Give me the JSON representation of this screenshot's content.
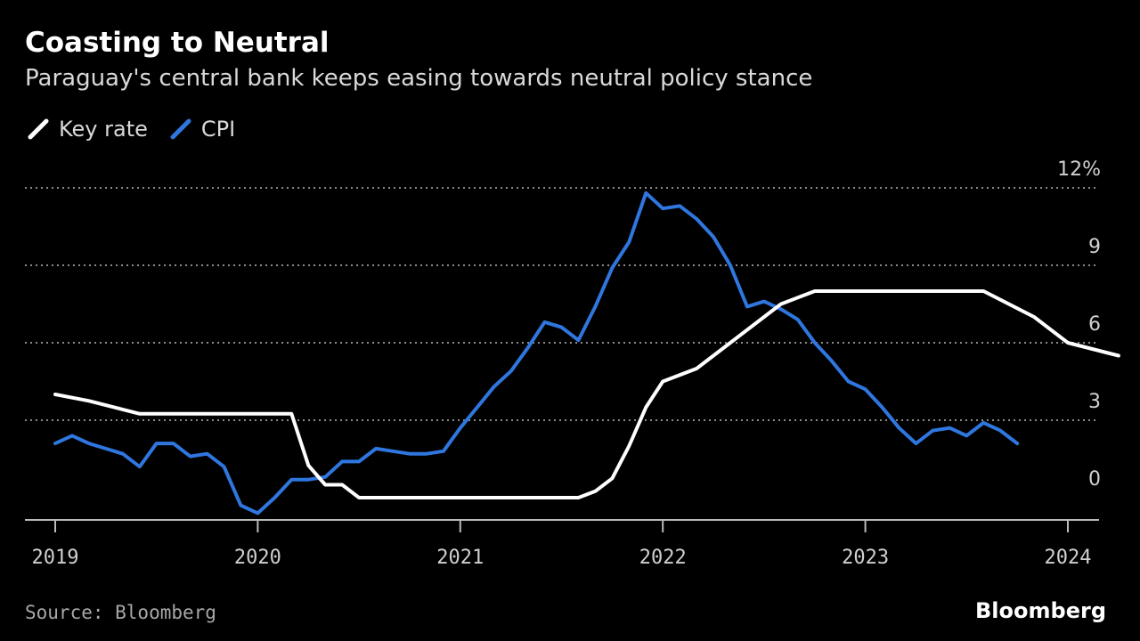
{
  "title": "Coasting to Neutral",
  "subtitle": "Paraguay's central bank keeps easing towards neutral policy stance",
  "source": "Source: Bloomberg",
  "brand": "Bloomberg",
  "colors": {
    "key_rate": "#ffffff",
    "cpi": "#2f76df",
    "grid": "#8a8a8a",
    "background": "#000000"
  },
  "chart_data": {
    "type": "line",
    "title": "Coasting to Neutral",
    "subtitle": "Paraguay's central bank keeps easing towards neutral policy stance",
    "ylim": [
      0,
      12
    ],
    "y_ticks": [
      0,
      3,
      6,
      9,
      12
    ],
    "y_tick_labels": [
      "0",
      "3",
      "6",
      "9",
      "12%"
    ],
    "x_ticks": [
      "2019",
      "2020",
      "2021",
      "2022",
      "2023",
      "2024"
    ],
    "xlim": [
      "2019-01",
      "2024-11"
    ],
    "grid": "horizontal dotted",
    "legend_position": "top-left",
    "series": [
      {
        "name": "Key rate",
        "color": "#ffffff",
        "points": [
          [
            "2019-01",
            4.0
          ],
          [
            "2019-03",
            3.75
          ],
          [
            "2019-06",
            3.25
          ],
          [
            "2019-09",
            3.25
          ],
          [
            "2019-12",
            3.25
          ],
          [
            "2020-03",
            3.25
          ],
          [
            "2020-04",
            1.25
          ],
          [
            "2020-05",
            0.5
          ],
          [
            "2020-06",
            0.5
          ],
          [
            "2020-07",
            0
          ],
          [
            "2020-12",
            0
          ],
          [
            "2021-06",
            0
          ],
          [
            "2021-08",
            0
          ],
          [
            "2021-09",
            0.25
          ],
          [
            "2021-10",
            0.75
          ],
          [
            "2021-11",
            2.0
          ],
          [
            "2021-12",
            3.5
          ],
          [
            "2022-01",
            4.5
          ],
          [
            "2022-03",
            5.0
          ],
          [
            "2022-05",
            6.0
          ],
          [
            "2022-07",
            7.0
          ],
          [
            "2022-08",
            7.5
          ],
          [
            "2022-10",
            8.0
          ],
          [
            "2022-12",
            8.0
          ],
          [
            "2023-06",
            8.0
          ],
          [
            "2023-08",
            8.0
          ],
          [
            "2023-11",
            7.0
          ],
          [
            "2024-01",
            6.0
          ],
          [
            "2024-04",
            5.5
          ]
        ]
      },
      {
        "name": "CPI",
        "color": "#2f76df",
        "points": [
          [
            "2019-01",
            2.1
          ],
          [
            "2019-02",
            2.4
          ],
          [
            "2019-03",
            2.1
          ],
          [
            "2019-04",
            1.9
          ],
          [
            "2019-05",
            1.7
          ],
          [
            "2019-06",
            1.2
          ],
          [
            "2019-07",
            2.1
          ],
          [
            "2019-08",
            2.1
          ],
          [
            "2019-09",
            1.6
          ],
          [
            "2019-10",
            1.7
          ],
          [
            "2019-11",
            1.2
          ],
          [
            "2019-12",
            -0.3
          ],
          [
            "2020-01",
            -0.6
          ],
          [
            "2020-02",
            0.0
          ],
          [
            "2020-03",
            0.7
          ],
          [
            "2020-04",
            0.7
          ],
          [
            "2020-05",
            0.8
          ],
          [
            "2020-06",
            1.4
          ],
          [
            "2020-07",
            1.4
          ],
          [
            "2020-08",
            1.9
          ],
          [
            "2020-09",
            1.8
          ],
          [
            "2020-10",
            1.7
          ],
          [
            "2020-11",
            1.7
          ],
          [
            "2020-12",
            1.8
          ],
          [
            "2021-01",
            2.7
          ],
          [
            "2021-02",
            3.5
          ],
          [
            "2021-03",
            4.3
          ],
          [
            "2021-04",
            4.9
          ],
          [
            "2021-05",
            5.8
          ],
          [
            "2021-06",
            6.8
          ],
          [
            "2021-07",
            6.6
          ],
          [
            "2021-08",
            6.1
          ],
          [
            "2021-09",
            7.4
          ],
          [
            "2021-10",
            8.9
          ],
          [
            "2021-11",
            9.9
          ],
          [
            "2021-12",
            11.8
          ],
          [
            "2022-01",
            11.2
          ],
          [
            "2022-02",
            11.3
          ],
          [
            "2022-03",
            10.8
          ],
          [
            "2022-04",
            10.1
          ],
          [
            "2022-05",
            9.0
          ],
          [
            "2022-06",
            7.4
          ],
          [
            "2022-07",
            7.6
          ],
          [
            "2022-08",
            7.3
          ],
          [
            "2022-09",
            6.9
          ],
          [
            "2022-10",
            6.0
          ],
          [
            "2022-11",
            5.3
          ],
          [
            "2022-12",
            4.5
          ],
          [
            "2023-01",
            4.2
          ],
          [
            "2023-02",
            3.5
          ],
          [
            "2023-03",
            2.7
          ],
          [
            "2023-04",
            2.1
          ],
          [
            "2023-05",
            2.6
          ],
          [
            "2023-06",
            2.7
          ],
          [
            "2023-07",
            2.4
          ],
          [
            "2023-08",
            2.9
          ],
          [
            "2023-09",
            2.6
          ],
          [
            "2023-10",
            2.1
          ]
        ]
      }
    ]
  }
}
